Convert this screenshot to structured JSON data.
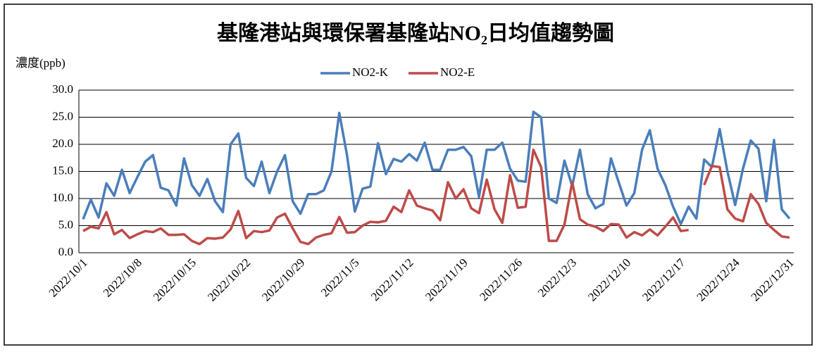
{
  "chart_data": {
    "type": "line",
    "title": "基隆港站與環保署基隆站NO₂日均值趨勢圖",
    "y_label": "濃度(ppb)",
    "categories": [
      "2022/10/1",
      null,
      null,
      null,
      null,
      null,
      null,
      "2022/10/8",
      null,
      null,
      null,
      null,
      null,
      null,
      "2022/10/15",
      null,
      null,
      null,
      null,
      null,
      null,
      "2022/10/22",
      null,
      null,
      null,
      null,
      null,
      null,
      "2022/10/29",
      null,
      null,
      null,
      null,
      null,
      null,
      "2022/11/5",
      null,
      null,
      null,
      null,
      null,
      null,
      "2022/11/12",
      null,
      null,
      null,
      null,
      null,
      null,
      "2022/11/19",
      null,
      null,
      null,
      null,
      null,
      null,
      "2022/11/26",
      null,
      null,
      null,
      null,
      null,
      null,
      "2022/12/3",
      null,
      null,
      null,
      null,
      null,
      null,
      "2022/12/10",
      null,
      null,
      null,
      null,
      null,
      null,
      "2022/12/17",
      null,
      null,
      null,
      null,
      null,
      null,
      "2022/12/24",
      null,
      null,
      null,
      null,
      null,
      null,
      "2022/12/31"
    ],
    "series": [
      {
        "name": "NO2-K",
        "color": "#4a7ebb",
        "values": [
          6.2,
          9.8,
          6.5,
          12.8,
          10.5,
          15.3,
          11,
          14,
          16.8,
          18,
          12,
          11.5,
          8.7,
          17.4,
          12.5,
          10.5,
          13.6,
          9.5,
          7.5,
          20,
          22,
          13.8,
          12.3,
          16.8,
          11,
          15,
          18,
          9.5,
          7.2,
          10.8,
          10.8,
          11.5,
          15,
          25.8,
          18,
          7.6,
          11.8,
          12.2,
          20.2,
          14.5,
          17.3,
          16.8,
          18.2,
          17,
          20.3,
          15.3,
          15.3,
          19,
          19,
          19.5,
          17.8,
          10.3,
          19,
          19,
          20.3,
          15.5,
          13.3,
          13.1,
          26,
          25,
          10,
          9.2,
          17,
          12.3,
          19,
          10.8,
          8.2,
          9,
          17.4,
          13,
          8.7,
          11,
          19,
          22.6,
          15.5,
          12.5,
          8.5,
          5.3,
          8.5,
          6.3,
          17.2,
          15.8,
          22.8,
          15,
          8.8,
          15.5,
          20.7,
          19.2,
          9.5,
          20.8,
          8,
          6.3
        ]
      },
      {
        "name": "NO2-E",
        "color": "#be4b48",
        "values": [
          4,
          4.8,
          4.5,
          7.5,
          3.4,
          4.2,
          2.7,
          3.4,
          4,
          3.8,
          4.5,
          3.3,
          3.3,
          3.4,
          2.2,
          1.6,
          2.7,
          2.6,
          2.8,
          4.3,
          7.7,
          2.7,
          4,
          3.8,
          4.1,
          6.5,
          7.2,
          4.5,
          2,
          1.6,
          2.8,
          3.3,
          3.6,
          6.6,
          3.7,
          3.8,
          5,
          5.7,
          5.6,
          5.9,
          8.5,
          7.5,
          11.5,
          8.7,
          8.2,
          7.8,
          6,
          13,
          10,
          11.7,
          8.2,
          7.3,
          13.5,
          8,
          5.5,
          14.3,
          8.3,
          8.5,
          19,
          15.8,
          2.2,
          2.2,
          5.2,
          13,
          6.2,
          5.2,
          4.8,
          4,
          5.3,
          5.2,
          2.8,
          3.8,
          3.2,
          4.3,
          3.2,
          4.8,
          6.5,
          4,
          4.2,
          null,
          12.5,
          16,
          15.8,
          8,
          6.3,
          5.8,
          10.8,
          9,
          5.5,
          4.2,
          3,
          2.8
        ]
      }
    ],
    "ylim": [
      0,
      30
    ],
    "yticks": [
      {
        "value": 0,
        "label": "0.0"
      },
      {
        "value": 5,
        "label": "5.0"
      },
      {
        "value": 10,
        "label": "10.0"
      },
      {
        "value": 15,
        "label": "15.0"
      },
      {
        "value": 20,
        "label": "20.0"
      },
      {
        "value": 25,
        "label": "25.0"
      },
      {
        "value": 30,
        "label": "30.0"
      }
    ],
    "grid": true,
    "legend": "top"
  }
}
